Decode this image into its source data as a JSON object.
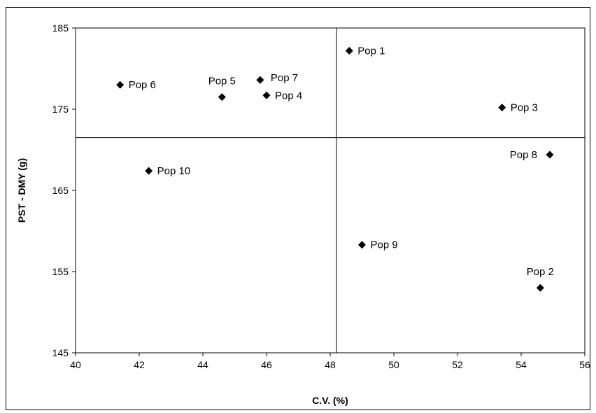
{
  "chart_data": {
    "type": "scatter",
    "title": "",
    "xlabel": "C.V. (%)",
    "ylabel": "PST -  DMY (g)",
    "xlim": [
      40,
      56
    ],
    "ylim": [
      145,
      185
    ],
    "x_ticks": [
      40,
      42,
      44,
      46,
      48,
      50,
      52,
      54,
      56
    ],
    "y_ticks": [
      145,
      155,
      165,
      175,
      185
    ],
    "grid": false,
    "legend": "none",
    "reference_lines": {
      "x": 48.2,
      "y": 171.5
    },
    "marker": "diamond",
    "marker_color": "#000000",
    "points": [
      {
        "label": "Pop 1",
        "x": 48.6,
        "y": 182.2,
        "label_pos": "right"
      },
      {
        "label": "Pop 2",
        "x": 54.6,
        "y": 153.0,
        "label_pos": "above"
      },
      {
        "label": "Pop 3",
        "x": 53.4,
        "y": 175.2,
        "label_pos": "right"
      },
      {
        "label": "Pop 4",
        "x": 46.0,
        "y": 176.7,
        "label_pos": "right"
      },
      {
        "label": "Pop 5",
        "x": 44.6,
        "y": 176.5,
        "label_pos": "above"
      },
      {
        "label": "Pop 6",
        "x": 41.4,
        "y": 178.0,
        "label_pos": "right"
      },
      {
        "label": "Pop 7",
        "x": 45.8,
        "y": 178.6,
        "label_pos": "right-up"
      },
      {
        "label": "Pop 8",
        "x": 54.9,
        "y": 169.4,
        "label_pos": "left"
      },
      {
        "label": "Pop 9",
        "x": 49.0,
        "y": 158.3,
        "label_pos": "right"
      },
      {
        "label": "Pop 10",
        "x": 42.3,
        "y": 167.4,
        "label_pos": "right"
      }
    ]
  }
}
